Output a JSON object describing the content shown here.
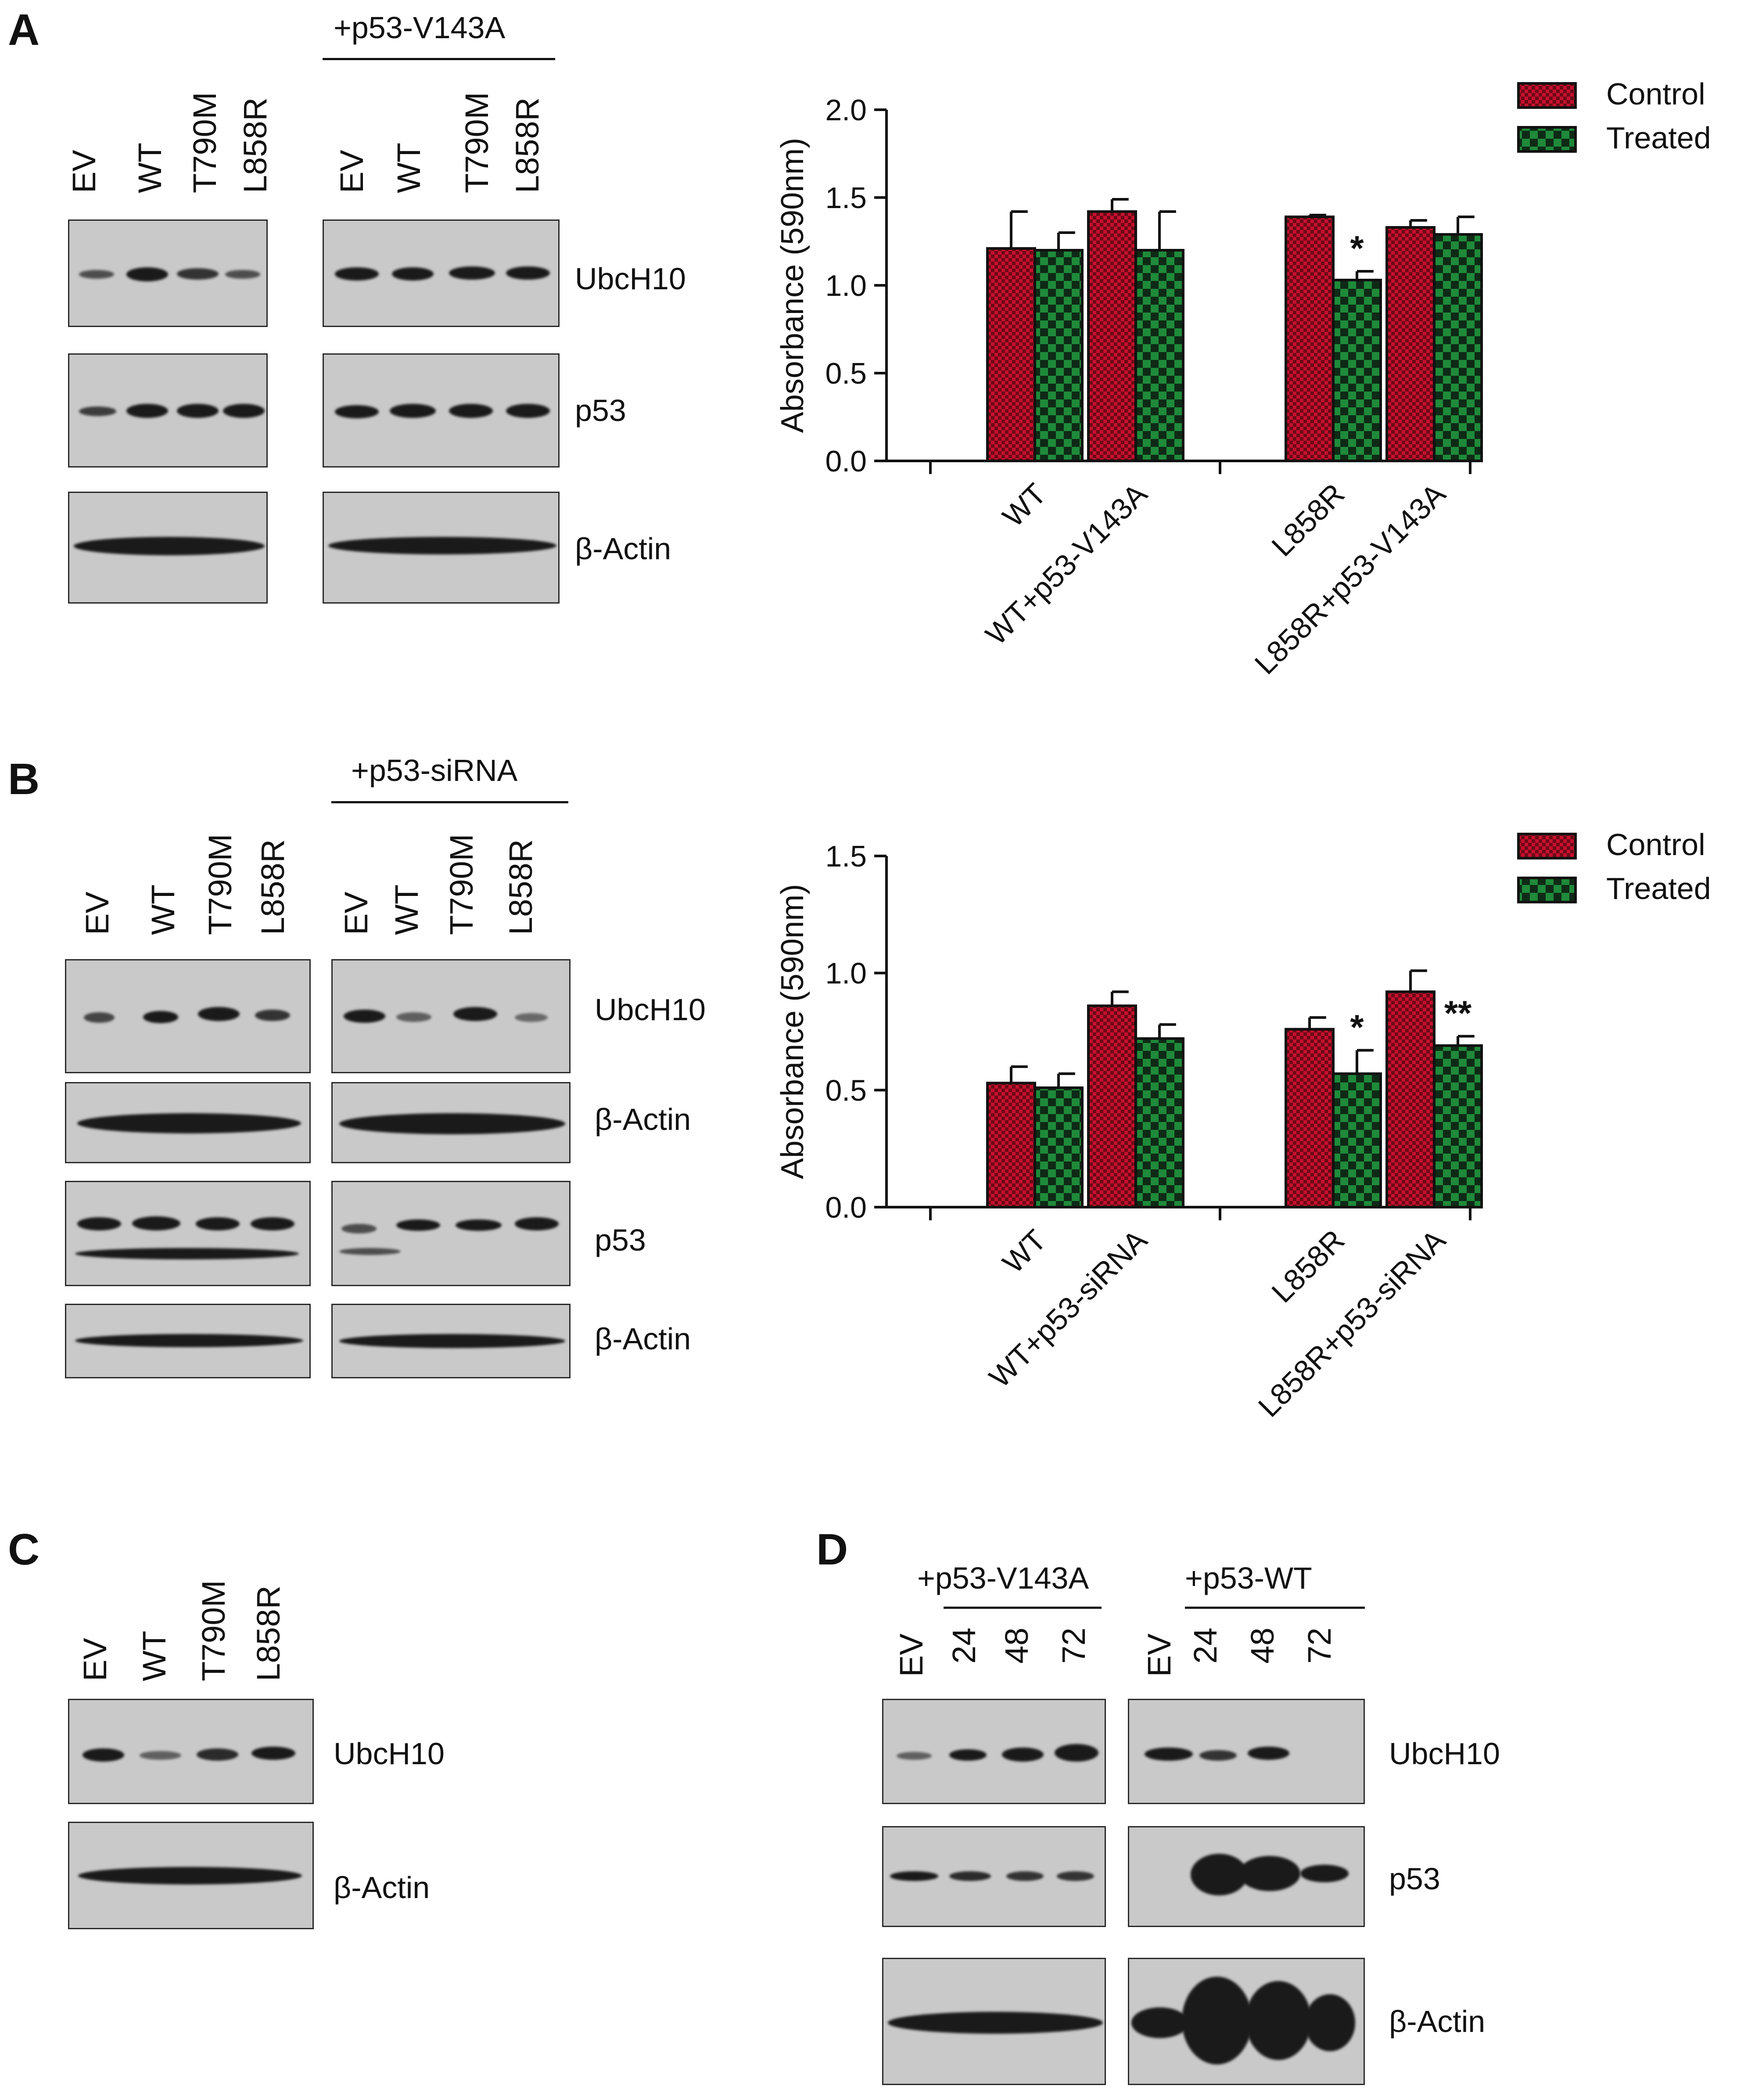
{
  "colors": {
    "control": "#c8102e",
    "treated": "#1f8a3a",
    "blot_bg": "#c9c9c9",
    "band": "#1a1a1a"
  },
  "panel_A": {
    "letter": "A",
    "group_label": "+p53-V143A",
    "lanes": [
      "EV",
      "WT",
      "T790M",
      "L858R"
    ],
    "blots": [
      "UbcH10",
      "p53",
      "β-Actin"
    ]
  },
  "panel_B": {
    "letter": "B",
    "group_label": "+p53-siRNA",
    "lanes": [
      "EV",
      "WT",
      "T790M",
      "L858R"
    ],
    "blots": [
      "UbcH10",
      "β-Actin",
      "p53",
      "β-Actin"
    ]
  },
  "panel_C": {
    "letter": "C",
    "lanes": [
      "EV",
      "WT",
      "T790M",
      "L858R"
    ],
    "blots": [
      "UbcH10",
      "β-Actin"
    ]
  },
  "panel_D": {
    "letter": "D",
    "group_label_left": "+p53-V143A",
    "group_label_right": "+p53-WT",
    "lanes": [
      "EV",
      "24",
      "48",
      "72"
    ],
    "blots": [
      "UbcH10",
      "p53",
      "β-Actin"
    ]
  },
  "chart_data": [
    {
      "type": "bar",
      "panel": "A",
      "ylabel": "Absorbance (590nm)",
      "ylim": [
        0,
        2.0
      ],
      "yticks": [
        "0.0",
        "0.5",
        "1.0",
        "1.5",
        "2.0"
      ],
      "categories": [
        "WT",
        "WT+p53-V143A",
        "L858R",
        "L858R+p53-V143A"
      ],
      "series": [
        {
          "name": "Control",
          "values": [
            1.21,
            1.42,
            1.39,
            1.33
          ],
          "errors": [
            0.21,
            0.07,
            0.01,
            0.04
          ]
        },
        {
          "name": "Treated",
          "values": [
            1.2,
            1.2,
            1.03,
            1.29
          ],
          "errors": [
            0.1,
            0.22,
            0.05,
            0.1
          ]
        }
      ],
      "annotations": [
        {
          "category": "L858R",
          "series": "Treated",
          "text": "*"
        }
      ],
      "legend": "top-right"
    },
    {
      "type": "bar",
      "panel": "B",
      "ylabel": "Absorbance (590nm)",
      "ylim": [
        0,
        1.5
      ],
      "yticks": [
        "0.0",
        "0.5",
        "1.0",
        "1.5"
      ],
      "categories": [
        "WT",
        "WT+p53-siRNA",
        "L858R",
        "L858R+p53-siRNA"
      ],
      "series": [
        {
          "name": "Control",
          "values": [
            0.53,
            0.86,
            0.76,
            0.92
          ],
          "errors": [
            0.07,
            0.06,
            0.05,
            0.09
          ]
        },
        {
          "name": "Treated",
          "values": [
            0.51,
            0.72,
            0.57,
            0.69
          ],
          "errors": [
            0.06,
            0.06,
            0.1,
            0.04
          ]
        }
      ],
      "annotations": [
        {
          "category": "L858R",
          "series": "Treated",
          "text": "*"
        },
        {
          "category": "L858R+p53-siRNA",
          "series": "Treated",
          "text": "**"
        }
      ],
      "legend": "top-right"
    }
  ]
}
